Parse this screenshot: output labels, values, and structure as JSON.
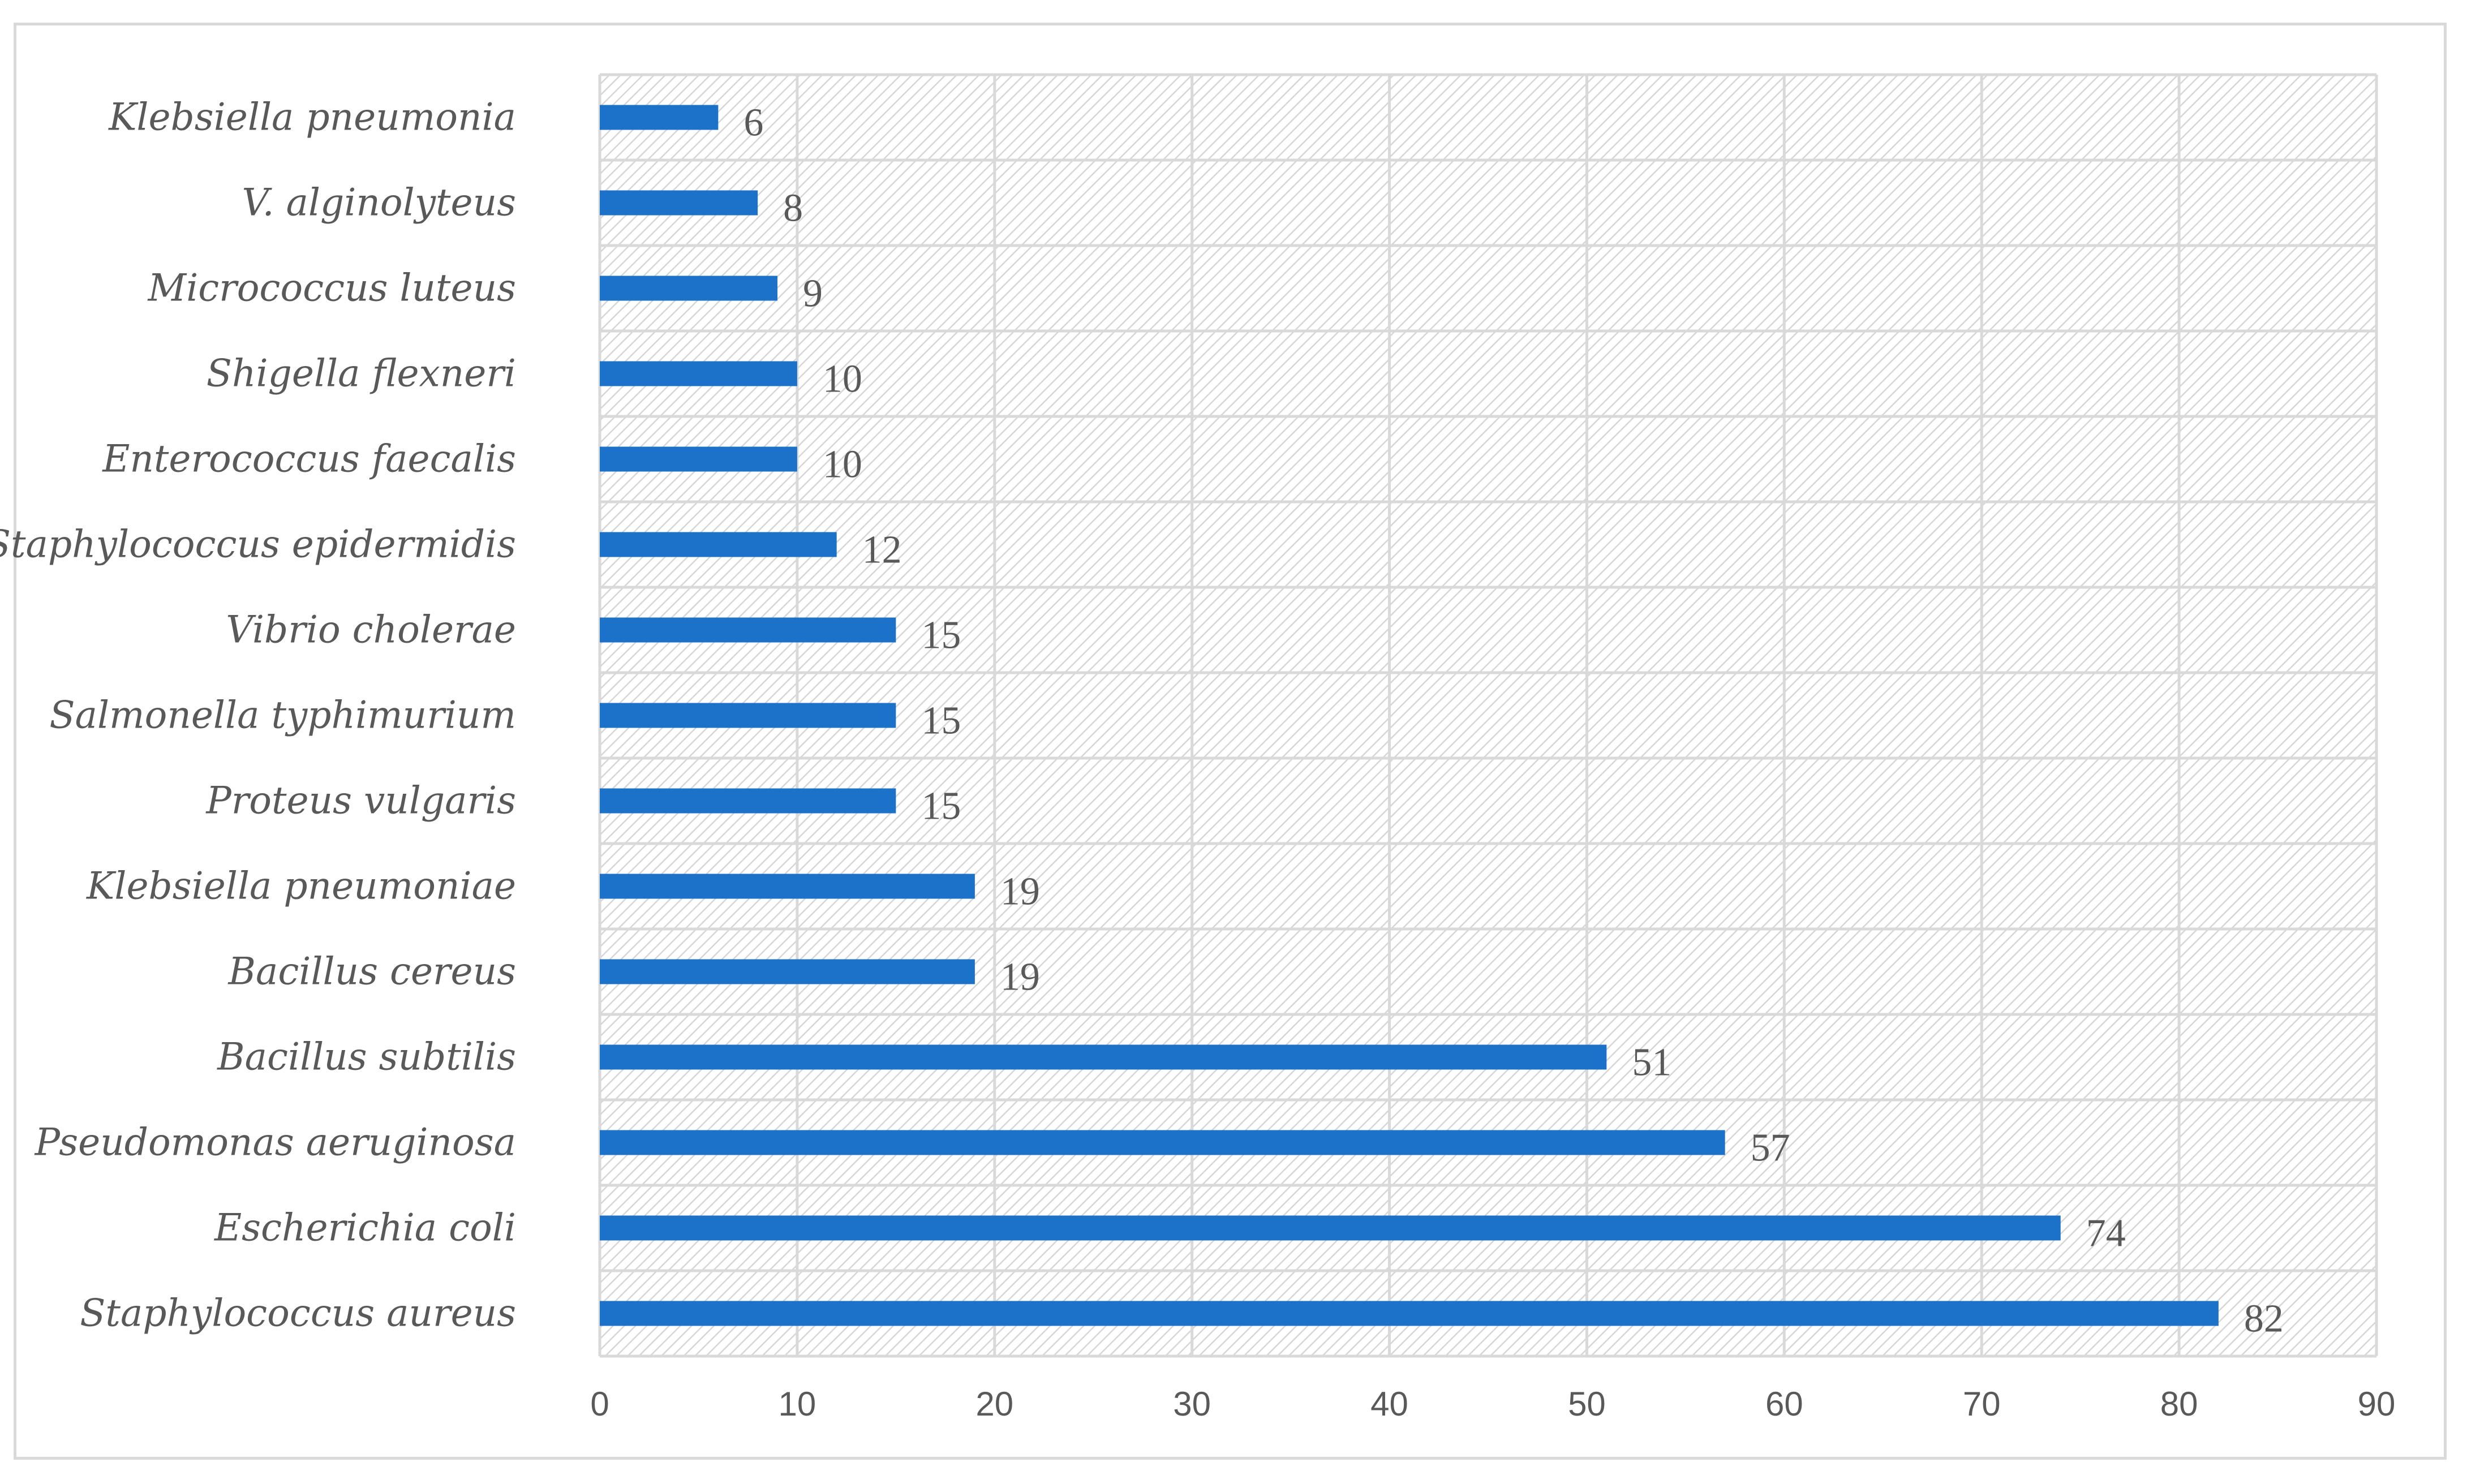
{
  "chart_data": {
    "type": "bar",
    "orientation": "horizontal",
    "categories": [
      "Klebsiella pneumonia",
      "V. alginolyteus",
      "Micrococcus luteus",
      "Shigella flexneri",
      "Enterococcus faecalis",
      "Staphylococcus epidermidis",
      "Vibrio cholerae",
      "Salmonella typhimurium",
      "Proteus vulgaris",
      "Klebsiella pneumoniae",
      "Bacillus cereus",
      "Bacillus subtilis",
      "Pseudomonas aeruginosa",
      "Escherichia coli",
      "Staphylococcus aureus"
    ],
    "values": [
      6,
      8,
      9,
      10,
      10,
      12,
      15,
      15,
      15,
      19,
      19,
      51,
      57,
      74,
      82
    ],
    "data_labels": [
      "6",
      "8",
      "9",
      "10",
      "10",
      "12",
      "15",
      "15",
      "15",
      "19",
      "19",
      "51",
      "57",
      "74",
      "82"
    ],
    "xlim": [
      0,
      90
    ],
    "xticks": [
      "0",
      "10",
      "20",
      "30",
      "40",
      "50",
      "60",
      "70",
      "80",
      "90"
    ],
    "title": "",
    "xlabel": "",
    "ylabel": "",
    "grid": true,
    "legend": "none",
    "bar_color": "#1b72c8",
    "grid_color": "#d9d9d9",
    "plot_hatch": true
  }
}
